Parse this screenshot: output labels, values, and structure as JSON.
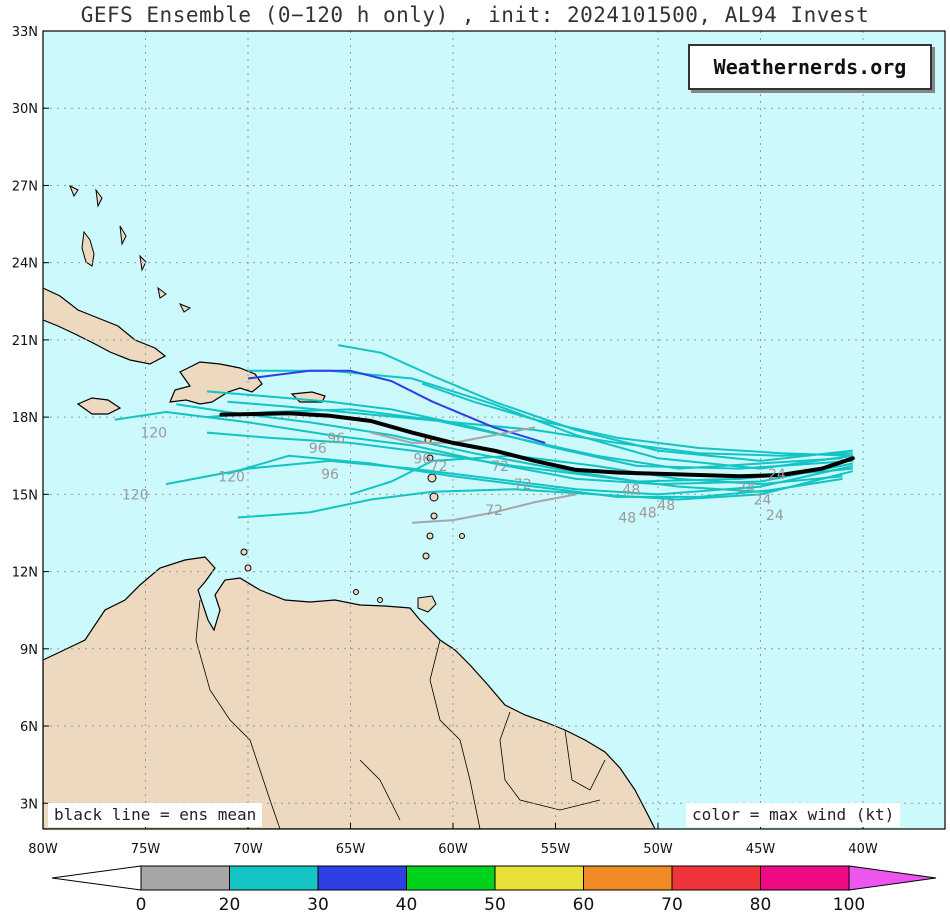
{
  "title": "GEFS Ensemble (0−120 h only) , init: 2024101500, AL94 Invest",
  "brand": "Weathernerds.org",
  "notes": {
    "left": "black line = ens mean",
    "right": "color = max wind (kt)"
  },
  "colors": {
    "ocean": "#ccf9fb",
    "land": "#ecd9bf",
    "mean_track": "#000000",
    "grid": "#999999"
  },
  "map": {
    "lon_range": [
      -80,
      -36
    ],
    "lat_range": [
      2,
      33
    ],
    "lat_labels": [
      "3N",
      "6N",
      "9N",
      "12N",
      "15N",
      "18N",
      "21N",
      "24N",
      "27N",
      "30N",
      "33N"
    ],
    "lon_labels": [
      "80W",
      "75W",
      "70W",
      "65W",
      "60W",
      "55W",
      "50W",
      "45W",
      "40W"
    ],
    "lat_values": [
      3,
      6,
      9,
      12,
      15,
      18,
      21,
      24,
      27,
      30,
      33
    ],
    "lon_values": [
      -80,
      -75,
      -70,
      -65,
      -60,
      -55,
      -50,
      -45,
      -40
    ]
  },
  "ensemble_mean": [
    [
      -40.5,
      16.4
    ],
    [
      -42,
      16.0
    ],
    [
      -44,
      15.75
    ],
    [
      -46,
      15.7
    ],
    [
      -48,
      15.75
    ],
    [
      -50,
      15.8
    ],
    [
      -52,
      15.85
    ],
    [
      -54,
      15.95
    ],
    [
      -56,
      16.3
    ],
    [
      -58,
      16.7
    ],
    [
      -60,
      17.0
    ],
    [
      -62,
      17.4
    ],
    [
      -64,
      17.85
    ],
    [
      -66,
      18.05
    ],
    [
      -68,
      18.15
    ],
    [
      -71.3,
      18.1
    ]
  ],
  "member_tracks": [
    {
      "wind": "20-30",
      "points": [
        [
          -40.5,
          16.7
        ],
        [
          -45,
          16.3
        ],
        [
          -50,
          16.7
        ],
        [
          -54,
          17.5
        ],
        [
          -58,
          18.6
        ],
        [
          -61,
          19.6
        ],
        [
          -63.5,
          20.5
        ],
        [
          -65.6,
          20.8
        ]
      ]
    },
    {
      "wind": "20-30",
      "points": [
        [
          -40.5,
          16.5
        ],
        [
          -45,
          16.0
        ],
        [
          -50,
          16.4
        ],
        [
          -54,
          17.3
        ],
        [
          -58,
          18.5
        ],
        [
          -62,
          19.5
        ],
        [
          -66,
          19.8
        ],
        [
          -70,
          19.8
        ]
      ]
    },
    {
      "wind": "20-30",
      "points": [
        [
          -40.5,
          16.3
        ],
        [
          -46,
          16.0
        ],
        [
          -51,
          16.1
        ],
        [
          -55,
          16.8
        ],
        [
          -59,
          17.6
        ],
        [
          -63,
          18.3
        ],
        [
          -66,
          18.6
        ],
        [
          -69,
          18.8
        ],
        [
          -72,
          19.0
        ]
      ]
    },
    {
      "wind": "20-30",
      "points": [
        [
          -40.5,
          16.0
        ],
        [
          -46,
          15.6
        ],
        [
          -51,
          15.5
        ],
        [
          -55,
          16.0
        ],
        [
          -59,
          16.6
        ],
        [
          -63,
          17.3
        ],
        [
          -67,
          17.8
        ],
        [
          -71,
          18.2
        ],
        [
          -73.5,
          18.5
        ]
      ]
    },
    {
      "wind": "20-30",
      "points": [
        [
          -40.5,
          16.2
        ],
        [
          -45,
          15.5
        ],
        [
          -50,
          15.4
        ],
        [
          -54,
          15.6
        ],
        [
          -58,
          16.2
        ],
        [
          -62,
          16.9
        ],
        [
          -66,
          17.3
        ],
        [
          -70,
          17.8
        ],
        [
          -74,
          18.2
        ],
        [
          -76.5,
          17.9
        ]
      ]
    },
    {
      "wind": "20-30",
      "points": [
        [
          -40.5,
          16.1
        ],
        [
          -45,
          15.3
        ],
        [
          -50,
          15.0
        ],
        [
          -54,
          15.2
        ],
        [
          -58,
          15.6
        ],
        [
          -62,
          16.0
        ],
        [
          -66,
          16.3
        ],
        [
          -70,
          16.0
        ],
        [
          -74,
          15.4
        ]
      ]
    },
    {
      "wind": "20-30",
      "points": [
        [
          -40.5,
          15.9
        ],
        [
          -44,
          15.2
        ],
        [
          -48,
          14.9
        ],
        [
          -52,
          14.9
        ],
        [
          -56,
          15.3
        ],
        [
          -60,
          15.7
        ],
        [
          -64,
          16.2
        ],
        [
          -68,
          16.5
        ],
        [
          -71,
          15.8
        ]
      ]
    },
    {
      "wind": "20-30",
      "points": [
        [
          -41,
          15.8
        ],
        [
          -45,
          15.0
        ],
        [
          -49,
          14.8
        ],
        [
          -53,
          15.0
        ],
        [
          -57,
          15.2
        ],
        [
          -61,
          15.1
        ],
        [
          -64,
          14.8
        ],
        [
          -67,
          14.3
        ],
        [
          -70.5,
          14.1
        ]
      ]
    },
    {
      "wind": "20-30",
      "points": [
        [
          -41,
          16.4
        ],
        [
          -45,
          16.2
        ],
        [
          -49,
          16.0
        ],
        [
          -53,
          16.5
        ],
        [
          -57,
          17.2
        ],
        [
          -61,
          17.9
        ],
        [
          -65,
          18.3
        ],
        [
          -69,
          18.2
        ],
        [
          -72,
          18.0
        ]
      ]
    },
    {
      "wind": "20-30",
      "points": [
        [
          -40.5,
          16.6
        ],
        [
          -44,
          16.5
        ],
        [
          -48,
          16.6
        ],
        [
          -52,
          17.0
        ],
        [
          -56,
          17.5
        ],
        [
          -60,
          17.8
        ],
        [
          -64,
          18.1
        ],
        [
          -68,
          18.4
        ],
        [
          -71,
          18.6
        ]
      ]
    },
    {
      "wind": "20-30",
      "points": [
        [
          -41,
          15.6
        ],
        [
          -45,
          15.1
        ],
        [
          -49,
          15.3
        ],
        [
          -53,
          15.7
        ],
        [
          -57,
          16.1
        ],
        [
          -61,
          16.6
        ],
        [
          -65,
          17.0
        ],
        [
          -69,
          17.2
        ],
        [
          -72,
          17.4
        ]
      ]
    },
    {
      "wind": "20-30",
      "points": [
        [
          -40.5,
          16.5
        ],
        [
          -44,
          16.6
        ],
        [
          -48,
          16.8
        ],
        [
          -52,
          17.2
        ],
        [
          -56,
          17.9
        ],
        [
          -59,
          18.6
        ],
        [
          -61.5,
          19.3
        ]
      ]
    },
    {
      "wind": "20-30",
      "points": [
        [
          -41,
          15.7
        ],
        [
          -45,
          15.4
        ],
        [
          -49,
          15.6
        ],
        [
          -53,
          16.1
        ],
        [
          -57,
          16.5
        ],
        [
          -61,
          16.3
        ],
        [
          -63,
          15.5
        ],
        [
          -65,
          15.0
        ]
      ]
    },
    {
      "wind": "30-40",
      "points": [
        [
          -55.5,
          17.0
        ],
        [
          -58,
          17.6
        ],
        [
          -61,
          18.6
        ],
        [
          -63,
          19.4
        ],
        [
          -65,
          19.8
        ],
        [
          -67,
          19.8
        ],
        [
          -70,
          19.5
        ]
      ]
    },
    {
      "wind": "0-20",
      "points": [
        [
          -54,
          15.0
        ],
        [
          -56,
          14.7
        ],
        [
          -58,
          14.3
        ],
        [
          -60,
          14.0
        ],
        [
          -62,
          13.9
        ]
      ]
    },
    {
      "wind": "0-20",
      "points": [
        [
          -64,
          17.4
        ],
        [
          -62,
          17.0
        ],
        [
          -60,
          17.0
        ],
        [
          -58,
          17.3
        ],
        [
          -56,
          17.6
        ]
      ]
    }
  ],
  "hour_labels": [
    {
      "text": "120",
      "lon": -74.6,
      "lat": 17.2
    },
    {
      "text": "120",
      "lon": -75.5,
      "lat": 14.8
    },
    {
      "text": "120",
      "lon": -70.8,
      "lat": 15.5
    },
    {
      "text": "96",
      "lon": -66.6,
      "lat": 16.6
    },
    {
      "text": "96",
      "lon": -65.7,
      "lat": 17.0
    },
    {
      "text": "96",
      "lon": -61.5,
      "lat": 16.2
    },
    {
      "text": "96",
      "lon": -66.0,
      "lat": 15.6
    },
    {
      "text": "72",
      "lon": -60.7,
      "lat": 15.9
    },
    {
      "text": "72",
      "lon": -57.7,
      "lat": 15.9
    },
    {
      "text": "72",
      "lon": -56.6,
      "lat": 15.2
    },
    {
      "text": "72",
      "lon": -58.0,
      "lat": 14.2
    },
    {
      "text": "48",
      "lon": -51.5,
      "lat": 13.9
    },
    {
      "text": "48",
      "lon": -50.5,
      "lat": 14.1
    },
    {
      "text": "48",
      "lon": -49.6,
      "lat": 14.4
    },
    {
      "text": "48",
      "lon": -51.3,
      "lat": 15.0
    },
    {
      "text": "24",
      "lon": -44.9,
      "lat": 14.6
    },
    {
      "text": "24",
      "lon": -44.3,
      "lat": 14.0
    },
    {
      "text": "24",
      "lon": -45.7,
      "lat": 15.1
    },
    {
      "text": "24",
      "lon": -44.2,
      "lat": 15.6
    }
  ],
  "colorbar": {
    "ticks": [
      "0",
      "20",
      "30",
      "40",
      "50",
      "60",
      "70",
      "80",
      "100"
    ],
    "colors": [
      "#ffffff",
      "#a6a6a6",
      "#14c3c3",
      "#2e3fe6",
      "#00d21e",
      "#e8e036",
      "#f08a25",
      "#f0343c",
      "#ee0a85",
      "#ee55ee"
    ]
  }
}
